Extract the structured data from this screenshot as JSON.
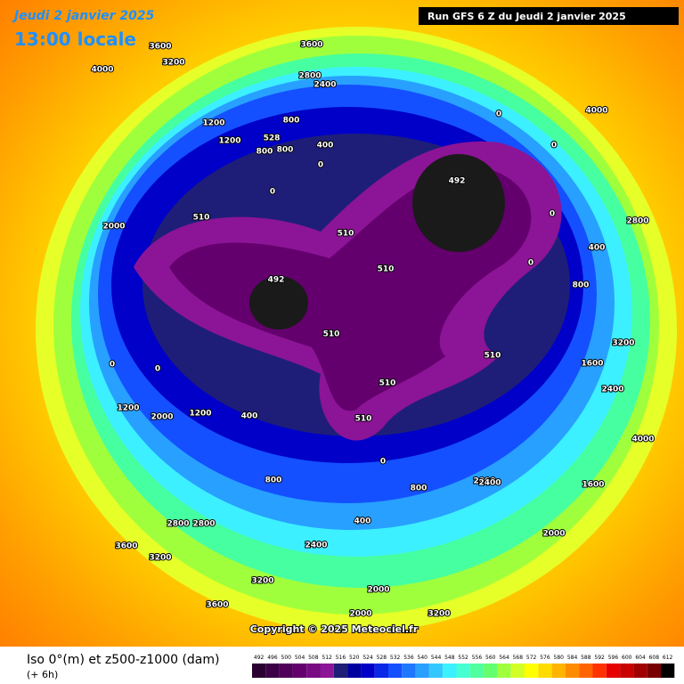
{
  "header": {
    "date": "Jeudi 2 janvier 2025",
    "time": "13:00 locale",
    "run": "Run GFS 6 Z du Jeudi 2 janvier 2025"
  },
  "map": {
    "contour_labels": [
      "3600",
      "4000",
      "3600",
      "3200",
      "2800",
      "2400",
      "800",
      "1200",
      "1200",
      "800",
      "800",
      "528",
      "400",
      "0",
      "492",
      "0",
      "0",
      "510",
      "510",
      "510",
      "492",
      "510",
      "510",
      "510",
      "510",
      "0",
      "0",
      "400",
      "800",
      "1200",
      "2000",
      "1200",
      "400",
      "0",
      "800",
      "2800",
      "3200",
      "3600",
      "3200",
      "2400",
      "2000",
      "2000",
      "2000",
      "3200",
      "1600",
      "2000",
      "2400",
      "4000",
      "3200",
      "2800",
      "2400",
      "800",
      "400",
      "0",
      "0",
      "0",
      "4000",
      "3600",
      "2800",
      "2000",
      "1600"
    ],
    "copyright": "Copyright © 2025 Meteociel.fr"
  },
  "footer": {
    "title": "Iso 0°(m) et z500-z1000 (dam)",
    "step": "(+ 6h)"
  },
  "legend": {
    "values": [
      492,
      496,
      500,
      504,
      508,
      512,
      516,
      520,
      524,
      528,
      532,
      536,
      540,
      544,
      548,
      552,
      556,
      560,
      564,
      568,
      572,
      576,
      580,
      584,
      588,
      592,
      596,
      600,
      604,
      608,
      612
    ],
    "colors": [
      "#2a0030",
      "#3c0046",
      "#50005a",
      "#64006e",
      "#780a82",
      "#8c1496",
      "#1e1e78",
      "#0000a0",
      "#0000c8",
      "#0a28e6",
      "#1450ff",
      "#1e78ff",
      "#28a0ff",
      "#32c8ff",
      "#3cf0ff",
      "#46ffd2",
      "#50ffa0",
      "#64ff6e",
      "#a0ff3c",
      "#d2ff28",
      "#ffff00",
      "#ffdc00",
      "#ffb400",
      "#ff8c00",
      "#ff6400",
      "#ff3200",
      "#e60000",
      "#c80000",
      "#a00000",
      "#780000",
      "#000000"
    ]
  }
}
